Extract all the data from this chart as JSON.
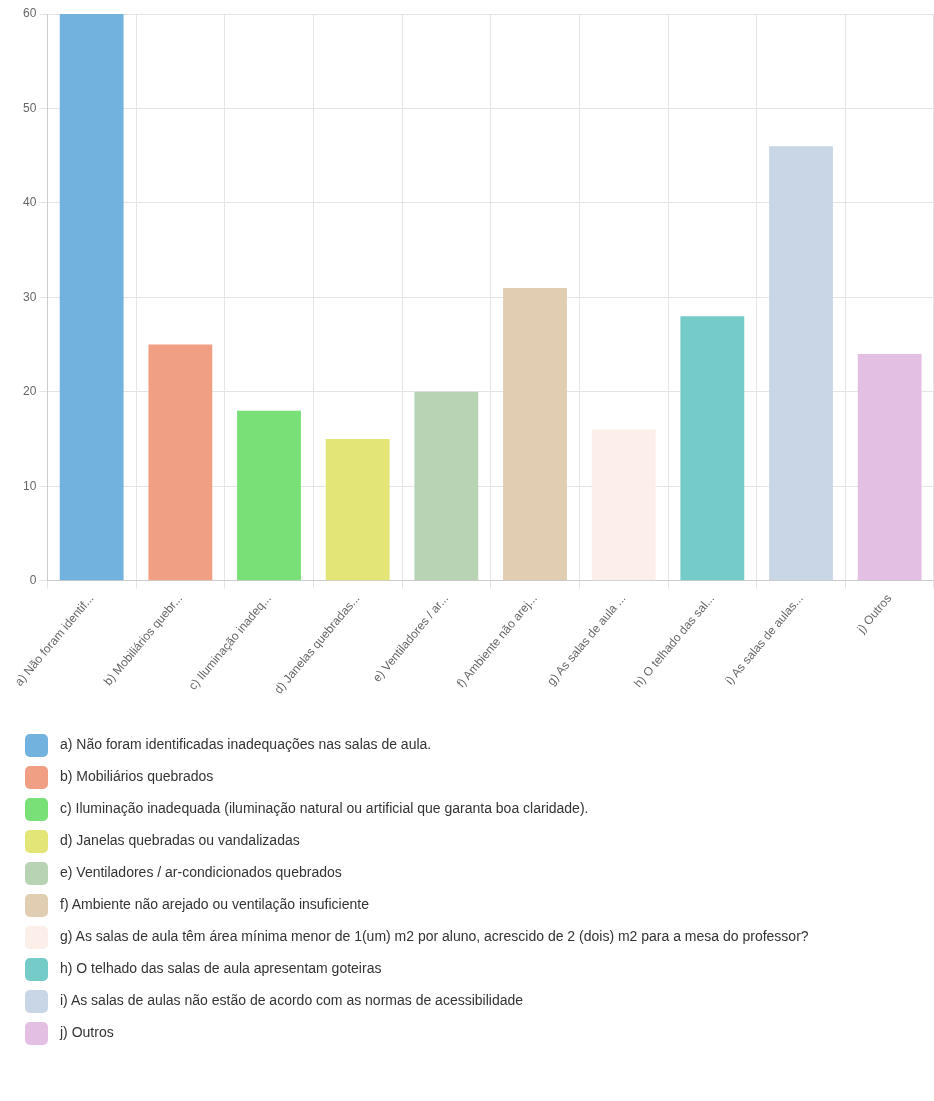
{
  "chart_data": {
    "type": "bar",
    "categories": [
      "a) Não foram identif...",
      "b) Mobiliários quebr...",
      "c) Iluminação inadeq...",
      "d) Janelas quebradas...",
      "e) Ventiladores / ar...",
      "f) Ambiente não arej...",
      "g) As salas de aula ...",
      "h) O telhado das sal...",
      "i) As salas de aulas...",
      "j) Outros"
    ],
    "series": [
      {
        "name": "a) Não foram identificadas inadequações nas salas de aula.",
        "color": "#72b2de",
        "values": [
          60,
          null,
          null,
          null,
          null,
          null,
          null,
          null,
          null,
          null
        ]
      },
      {
        "name": "b) Mobiliários quebrados",
        "color": "#f09f84",
        "values": [
          null,
          25,
          null,
          null,
          null,
          null,
          null,
          null,
          null,
          null
        ]
      },
      {
        "name": "c) Iluminação inadequada (iluminação natural ou artificial que garanta boa claridade).",
        "color": "#78e077",
        "values": [
          null,
          null,
          18,
          null,
          null,
          null,
          null,
          null,
          null,
          null
        ]
      },
      {
        "name": "d) Janelas quebradas ou vandalizadas",
        "color": "#e3e577",
        "values": [
          null,
          null,
          null,
          15,
          null,
          null,
          null,
          null,
          null,
          null
        ]
      },
      {
        "name": "e) Ventiladores / ar-condicionados quebrados",
        "color": "#b7d3b4",
        "values": [
          null,
          null,
          null,
          null,
          20,
          null,
          null,
          null,
          null,
          null
        ]
      },
      {
        "name": "f) Ambiente não arejado ou ventilação insuficiente",
        "color": "#e0cdb2",
        "values": [
          null,
          null,
          null,
          null,
          null,
          31,
          null,
          null,
          null,
          null
        ]
      },
      {
        "name": "g) As salas de aula têm área mínima menor de 1(um) m2 por aluno, acrescido de 2 (dois) m2 para a mesa do professor?",
        "color": "#fcefea",
        "values": [
          null,
          null,
          null,
          null,
          null,
          null,
          16,
          null,
          null,
          null
        ]
      },
      {
        "name": "h) O telhado das salas de aula apresentam goteiras",
        "color": "#75cbc8",
        "values": [
          null,
          null,
          null,
          null,
          null,
          null,
          null,
          28,
          null,
          null
        ]
      },
      {
        "name": "i) As salas de aulas não estão de acordo com as normas de acessibilidade",
        "color": "#c9d6e6",
        "values": [
          null,
          null,
          null,
          null,
          null,
          null,
          null,
          null,
          46,
          null
        ]
      },
      {
        "name": "j) Outros",
        "color": "#e3bfe4",
        "values": [
          null,
          null,
          null,
          null,
          null,
          null,
          null,
          null,
          null,
          24
        ]
      }
    ],
    "ylim": [
      0,
      60
    ],
    "yticks": [
      0,
      10,
      20,
      30,
      40,
      50,
      60
    ],
    "grid": true,
    "legend": "bottom"
  }
}
